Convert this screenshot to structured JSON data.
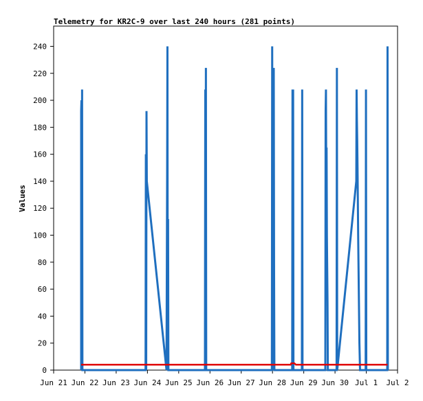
{
  "chart_data": {
    "type": "line",
    "title": "Telemetry for KR2C-9 over last 240 hours (281 points)",
    "xlabel": "",
    "ylabel": "Values",
    "x_tick_labels": [
      "Jun 21",
      "Jun 22",
      "Jun 23",
      "Jun 24",
      "Jun 25",
      "Jun 26",
      "Jun 27",
      "Jun 28",
      "Jun 29",
      "Jun 30",
      "Jul 1",
      "Jul 2"
    ],
    "y_ticks": [
      0,
      20,
      40,
      60,
      80,
      100,
      120,
      140,
      160,
      180,
      200,
      220,
      240
    ],
    "ylim": [
      0,
      255
    ],
    "xlim": [
      0,
      11
    ],
    "grid": false,
    "series": [
      {
        "color": "#1f6fbf",
        "points": [
          [
            0.88,
            0
          ],
          [
            0.88,
            192
          ],
          [
            0.89,
            200
          ],
          [
            0.9,
            0
          ],
          [
            0.91,
            208
          ],
          [
            0.92,
            0
          ],
          [
            2.94,
            0
          ],
          [
            2.95,
            160
          ],
          [
            2.96,
            0
          ],
          [
            2.97,
            192
          ],
          [
            2.98,
            140
          ],
          [
            3.61,
            0
          ],
          [
            3.63,
            145
          ],
          [
            3.64,
            240
          ],
          [
            3.65,
            0
          ],
          [
            3.66,
            112
          ],
          [
            3.67,
            0
          ],
          [
            4.84,
            0
          ],
          [
            4.85,
            208
          ],
          [
            4.86,
            0
          ],
          [
            4.87,
            224
          ],
          [
            4.88,
            0
          ],
          [
            6.98,
            0
          ],
          [
            6.99,
            240
          ],
          [
            7.0,
            112
          ],
          [
            7.01,
            0
          ],
          [
            7.02,
            186
          ],
          [
            7.03,
            0
          ],
          [
            7.04,
            224
          ],
          [
            7.05,
            80
          ],
          [
            7.06,
            0
          ],
          [
            7.63,
            0
          ],
          [
            7.64,
            208
          ],
          [
            7.65,
            0
          ],
          [
            7.66,
            208
          ],
          [
            7.67,
            0
          ],
          [
            7.94,
            0
          ],
          [
            7.95,
            208
          ],
          [
            7.96,
            0
          ],
          [
            8.69,
            0
          ],
          [
            8.7,
            192
          ],
          [
            8.71,
            208
          ],
          [
            8.72,
            140
          ],
          [
            8.73,
            165
          ],
          [
            8.74,
            100
          ],
          [
            8.76,
            50
          ],
          [
            8.77,
            0
          ],
          [
            9.05,
            0
          ],
          [
            9.06,
            224
          ],
          [
            9.07,
            0
          ],
          [
            9.68,
            140
          ],
          [
            9.69,
            208
          ],
          [
            9.7,
            185
          ],
          [
            9.71,
            170
          ],
          [
            9.72,
            150
          ],
          [
            9.74,
            100
          ],
          [
            9.76,
            60
          ],
          [
            9.78,
            20
          ],
          [
            9.8,
            0
          ],
          [
            9.98,
            0
          ],
          [
            9.99,
            208
          ],
          [
            10.0,
            0
          ],
          [
            10.67,
            0
          ],
          [
            10.68,
            240
          ],
          [
            10.69,
            0
          ]
        ]
      },
      {
        "color": "#e00000",
        "points": [
          [
            0.88,
            4
          ],
          [
            7.58,
            4
          ],
          [
            7.6,
            5
          ],
          [
            7.7,
            5
          ],
          [
            7.75,
            4
          ],
          [
            10.68,
            4
          ]
        ]
      }
    ]
  }
}
